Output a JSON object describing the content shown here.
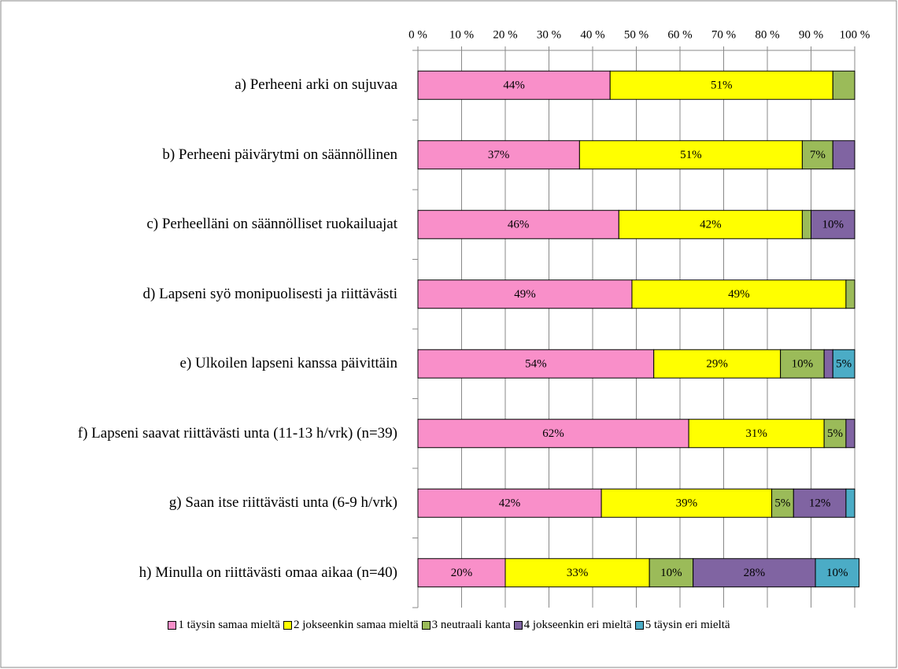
{
  "chart_data": {
    "type": "bar",
    "orientation": "horizontal",
    "stacked": true,
    "categories": [
      "a)  Perheeni arki on sujuvaa",
      "b)   Perheeni päivärytmi on säännöllinen",
      "c)   Perheelläni on säännölliset ruokailuajat",
      "d)   Lapseni syö monipuolisesti ja riittävästi",
      "e)   Ulkoilen lapseni kanssa päivittäin",
      "f)    Lapseni saavat riittävästi unta (11-13 h/vrk) (n=39)",
      "g)   Saan itse riittävästi unta (6-9 h/vrk)",
      "h)   Minulla on riittävästi omaa aikaa (n=40)"
    ],
    "series": [
      {
        "name": "1 täysin samaa mieltä",
        "color": "#f98fc9",
        "values": [
          44,
          37,
          46,
          49,
          54,
          62,
          42,
          20
        ],
        "value_labels": [
          "44%",
          "37%",
          "46%",
          "49%",
          "54%",
          "62%",
          "42%",
          "20%"
        ]
      },
      {
        "name": "2 jokseenkin samaa mieltä",
        "color": "#ffff00",
        "values": [
          51,
          51,
          42,
          49,
          29,
          31,
          39,
          33
        ],
        "value_labels": [
          "51%",
          "51%",
          "42%",
          "49%",
          "29%",
          "31%",
          "39%",
          "33%"
        ]
      },
      {
        "name": "3 neutraali kanta",
        "color": "#9bbb59",
        "values": [
          5,
          7,
          2,
          2,
          10,
          5,
          5,
          10
        ],
        "value_labels": [
          null,
          "7%",
          null,
          null,
          "10%",
          "5%",
          "5%",
          "10%"
        ]
      },
      {
        "name": "4 jokseenkin eri mieltä",
        "color": "#8064a2",
        "values": [
          0,
          5,
          10,
          0,
          2,
          2,
          12,
          28
        ],
        "value_labels": [
          null,
          null,
          "10%",
          null,
          null,
          null,
          "12%",
          "28%"
        ]
      },
      {
        "name": "5 täysin eri mieltä",
        "color": "#4bacc6",
        "values": [
          0,
          0,
          0,
          0,
          5,
          0,
          2,
          10
        ],
        "value_labels": [
          null,
          null,
          null,
          null,
          "5%",
          null,
          null,
          "10%"
        ]
      }
    ],
    "xlim": [
      0,
      100
    ],
    "xticks": [
      {
        "value": 0,
        "label": "0 %"
      },
      {
        "value": 10,
        "label": "10 %"
      },
      {
        "value": 20,
        "label": "20 %"
      },
      {
        "value": 30,
        "label": "30 %"
      },
      {
        "value": 40,
        "label": "40 %"
      },
      {
        "value": 50,
        "label": "50 %"
      },
      {
        "value": 60,
        "label": "60 %"
      },
      {
        "value": 70,
        "label": "70 %"
      },
      {
        "value": 80,
        "label": "80 %"
      },
      {
        "value": 90,
        "label": "90 %"
      },
      {
        "value": 100,
        "label": "100 %"
      }
    ],
    "grid": true,
    "legend": "bottom"
  }
}
